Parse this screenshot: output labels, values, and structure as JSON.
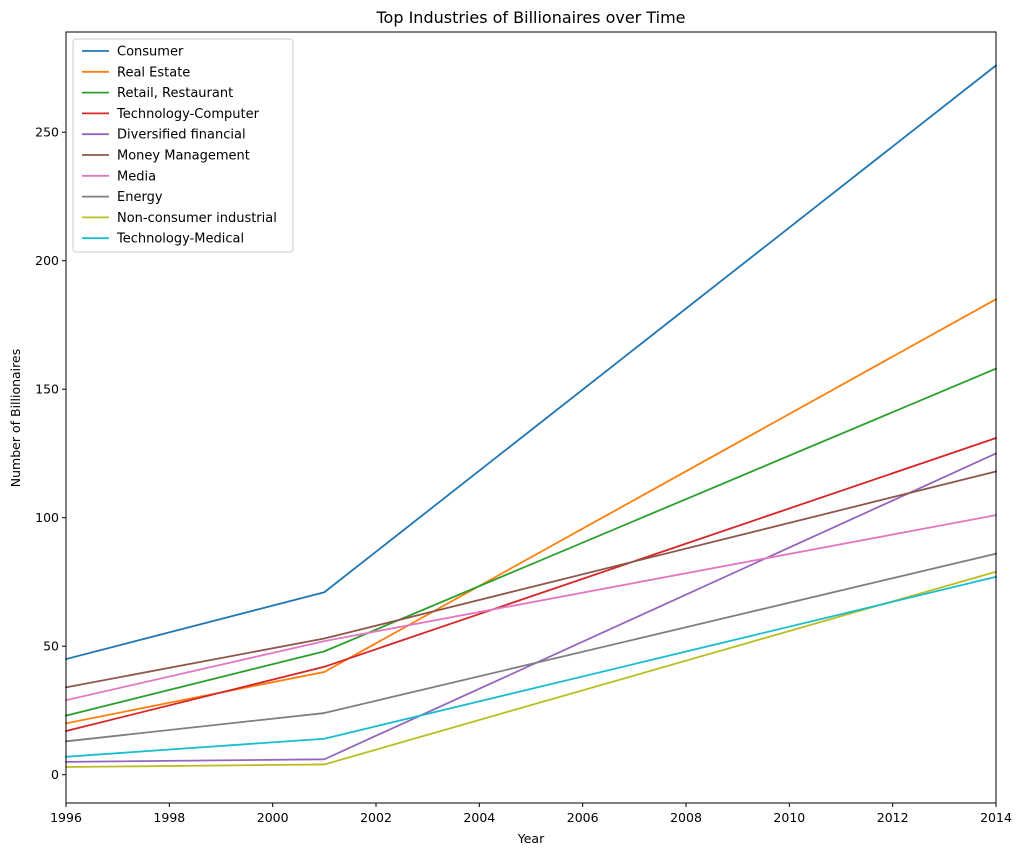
{
  "chart_data": {
    "type": "line",
    "title": "Top Industries of Billionaires over Time",
    "xlabel": "Year",
    "ylabel": "Number of Billionaires",
    "x": [
      1996,
      2001,
      2014
    ],
    "xlim": [
      1996,
      2014
    ],
    "ylim": [
      -11,
      289
    ],
    "xticks": [
      1996,
      1998,
      2000,
      2002,
      2004,
      2006,
      2008,
      2010,
      2012,
      2014
    ],
    "yticks": [
      0,
      50,
      100,
      150,
      200,
      250
    ],
    "grid": false,
    "legend_position": "top-left",
    "series": [
      {
        "name": "Consumer",
        "color": "#1f77b4",
        "values": [
          45,
          71,
          276
        ]
      },
      {
        "name": "Real Estate",
        "color": "#ff7f0e",
        "values": [
          20,
          40,
          185
        ]
      },
      {
        "name": "Retail, Restaurant",
        "color": "#2ca02c",
        "values": [
          23,
          48,
          158
        ]
      },
      {
        "name": "Technology-Computer",
        "color": "#d62728",
        "values": [
          17,
          42,
          131
        ]
      },
      {
        "name": "Diversified financial",
        "color": "#9467bd",
        "values": [
          5,
          6,
          125
        ]
      },
      {
        "name": "Money Management",
        "color": "#8c564b",
        "values": [
          34,
          53,
          118
        ]
      },
      {
        "name": "Media",
        "color": "#e377c2",
        "values": [
          29,
          52,
          101
        ]
      },
      {
        "name": "Energy",
        "color": "#7f7f7f",
        "values": [
          13,
          24,
          86
        ]
      },
      {
        "name": "Non-consumer industrial",
        "color": "#bcbd22",
        "values": [
          3,
          4,
          79
        ]
      },
      {
        "name": "Technology-Medical",
        "color": "#17becf",
        "values": [
          7,
          14,
          77
        ]
      }
    ]
  }
}
